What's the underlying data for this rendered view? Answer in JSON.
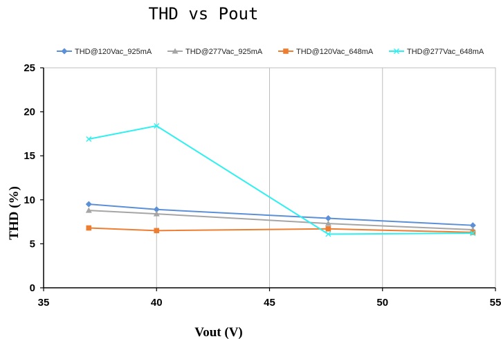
{
  "chart_data": {
    "type": "line",
    "title": "THD vs Pout",
    "xlabel": "Vout (V)",
    "ylabel": "THD (%)",
    "xlim": [
      35,
      55
    ],
    "ylim": [
      0,
      25
    ],
    "xticks": [
      35,
      40,
      45,
      50,
      55
    ],
    "yticks": [
      0,
      5,
      10,
      15,
      20,
      25
    ],
    "grid": {
      "vertical": true,
      "horizontal": false
    },
    "legend_position": "top",
    "series": [
      {
        "name": "THD@120Vac_925mA",
        "color": "#5b8fd6",
        "marker": "diamond",
        "x": [
          37,
          40,
          47.6,
          54
        ],
        "y": [
          9.5,
          8.9,
          7.9,
          7.1
        ]
      },
      {
        "name": "THD@277Vac_925mA",
        "color": "#a5a5a5",
        "marker": "triangle",
        "x": [
          37,
          40,
          47.6,
          54
        ],
        "y": [
          8.8,
          8.4,
          7.3,
          6.6
        ]
      },
      {
        "name": "THD@120Vac_648mA",
        "color": "#ed7d31",
        "marker": "square",
        "x": [
          37,
          40,
          47.6,
          54
        ],
        "y": [
          6.8,
          6.5,
          6.7,
          6.3
        ]
      },
      {
        "name": "THD@277Vac_648mA",
        "color": "#2ef0f0",
        "marker": "x",
        "x": [
          37,
          40,
          47.6,
          54
        ],
        "y": [
          16.9,
          18.4,
          6.1,
          6.2
        ]
      }
    ]
  }
}
